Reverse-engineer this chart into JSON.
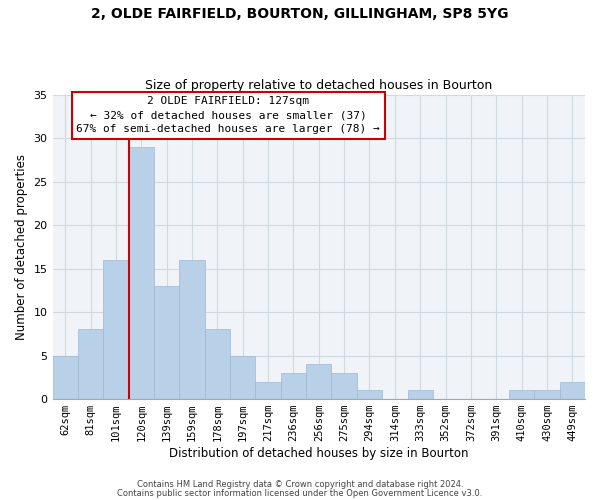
{
  "title1": "2, OLDE FAIRFIELD, BOURTON, GILLINGHAM, SP8 5YG",
  "title2": "Size of property relative to detached houses in Bourton",
  "xlabel": "Distribution of detached houses by size in Bourton",
  "ylabel": "Number of detached properties",
  "categories": [
    "62sqm",
    "81sqm",
    "101sqm",
    "120sqm",
    "139sqm",
    "159sqm",
    "178sqm",
    "197sqm",
    "217sqm",
    "236sqm",
    "256sqm",
    "275sqm",
    "294sqm",
    "314sqm",
    "333sqm",
    "352sqm",
    "372sqm",
    "391sqm",
    "410sqm",
    "430sqm",
    "449sqm"
  ],
  "values": [
    5,
    8,
    16,
    29,
    13,
    16,
    8,
    5,
    2,
    3,
    4,
    3,
    1,
    0,
    1,
    0,
    0,
    0,
    1,
    1,
    2
  ],
  "bar_color": "#b8d0e8",
  "bar_edge_color": "#a0b8d0",
  "redline_index": 3,
  "annotation_lines": [
    "2 OLDE FAIRFIELD: 127sqm",
    "← 32% of detached houses are smaller (37)",
    "67% of semi-detached houses are larger (78) →"
  ],
  "ylim": [
    0,
    35
  ],
  "yticks": [
    0,
    5,
    10,
    15,
    20,
    25,
    30,
    35
  ],
  "footnote1": "Contains HM Land Registry data © Crown copyright and database right 2024.",
  "footnote2": "Contains public sector information licensed under the Open Government Licence v3.0.",
  "box_color": "#ffffff",
  "box_edge_color": "#cc0000",
  "grid_color": "#d0d8e0",
  "title1_fontsize": 10,
  "title2_fontsize": 9,
  "xlabel_fontsize": 8.5,
  "ylabel_fontsize": 8.5,
  "tick_fontsize": 8,
  "xtick_fontsize": 7.5,
  "annot_fontsize": 8
}
